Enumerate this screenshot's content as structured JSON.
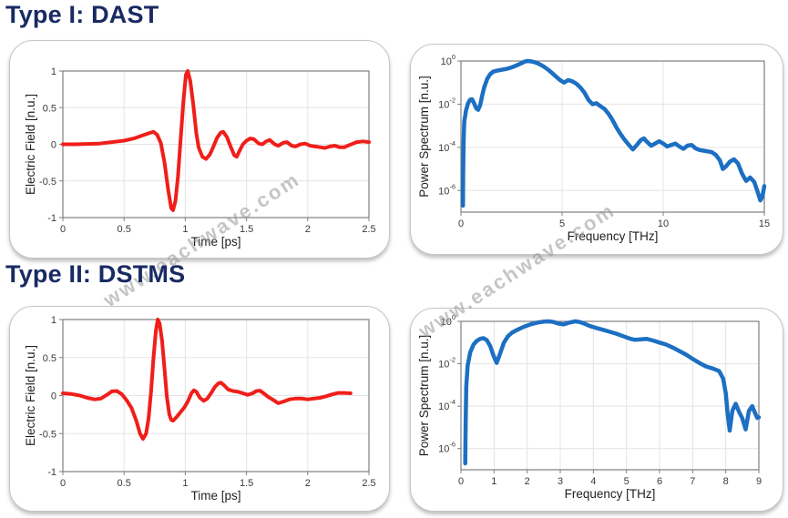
{
  "page": {
    "background": "#ffffff"
  },
  "heading_color": "#192a63",
  "headings": [
    {
      "text": "Type I: DAST"
    },
    {
      "text": "Type II: DSTMS"
    }
  ],
  "watermark": {
    "text": "www.eachwave.com",
    "color": "rgba(150,150,150,0.55)"
  },
  "colors": {
    "time_trace": "#f01e19",
    "spectrum_trace": "#1c6fc2",
    "grid": "#e4e4e4",
    "axis": "#7f7f7f"
  },
  "chart_data": [
    {
      "name": "dast-time",
      "type": "line",
      "title": "",
      "xlabel": "Time [ps]",
      "ylabel": "Electric Field [n.u.]",
      "xlim": [
        0,
        2.5
      ],
      "ylim": [
        -1,
        1
      ],
      "yscale": "linear",
      "xticks": [
        0,
        0.5,
        1,
        1.5,
        2,
        2.5
      ],
      "xtick_labels": [
        "0",
        "0.5",
        "1",
        "1.5",
        "2",
        "2.5"
      ],
      "yticks": [
        -1,
        -0.5,
        0,
        0.5,
        1
      ],
      "ytick_labels": [
        "-1",
        "-0.5",
        "0",
        "0.5",
        "1"
      ],
      "xgrid": [
        0.5,
        1,
        1.5,
        2
      ],
      "ygrid": [
        -0.5,
        0,
        0.5
      ],
      "grid": true,
      "legend": false,
      "line_color": "#f01e19",
      "line_width": 4,
      "points": [
        [
          0,
          0
        ],
        [
          0.1,
          0
        ],
        [
          0.2,
          0.005
        ],
        [
          0.3,
          0.01
        ],
        [
          0.4,
          0.03
        ],
        [
          0.5,
          0.05
        ],
        [
          0.58,
          0.08
        ],
        [
          0.65,
          0.12
        ],
        [
          0.71,
          0.155
        ],
        [
          0.74,
          0.17
        ],
        [
          0.77,
          0.13
        ],
        [
          0.8,
          0.02
        ],
        [
          0.83,
          -0.25
        ],
        [
          0.86,
          -0.62
        ],
        [
          0.885,
          -0.87
        ],
        [
          0.9,
          -0.9
        ],
        [
          0.92,
          -0.77
        ],
        [
          0.94,
          -0.45
        ],
        [
          0.96,
          0.02
        ],
        [
          0.985,
          0.6
        ],
        [
          1.005,
          0.95
        ],
        [
          1.02,
          1.0
        ],
        [
          1.04,
          0.87
        ],
        [
          1.065,
          0.55
        ],
        [
          1.09,
          0.15
        ],
        [
          1.11,
          -0.05
        ],
        [
          1.14,
          -0.17
        ],
        [
          1.17,
          -0.2
        ],
        [
          1.2,
          -0.14
        ],
        [
          1.23,
          -0.03
        ],
        [
          1.26,
          0.09
        ],
        [
          1.29,
          0.16
        ],
        [
          1.31,
          0.17
        ],
        [
          1.34,
          0.1
        ],
        [
          1.37,
          -0.03
        ],
        [
          1.4,
          -0.15
        ],
        [
          1.42,
          -0.17
        ],
        [
          1.44,
          -0.1
        ],
        [
          1.47,
          0.0
        ],
        [
          1.5,
          0.05
        ],
        [
          1.53,
          0.08
        ],
        [
          1.56,
          0.07
        ],
        [
          1.6,
          0.01
        ],
        [
          1.63,
          0.0
        ],
        [
          1.66,
          0.04
        ],
        [
          1.69,
          0.06
        ],
        [
          1.73,
          0.0
        ],
        [
          1.76,
          -0.02
        ],
        [
          1.8,
          0.02
        ],
        [
          1.83,
          0.03
        ],
        [
          1.87,
          -0.02
        ],
        [
          1.9,
          -0.03
        ],
        [
          1.94,
          0.0
        ],
        [
          1.98,
          0.01
        ],
        [
          2.02,
          -0.02
        ],
        [
          2.06,
          -0.03
        ],
        [
          2.1,
          -0.04
        ],
        [
          2.14,
          -0.05
        ],
        [
          2.18,
          -0.03
        ],
        [
          2.22,
          -0.02
        ],
        [
          2.26,
          -0.04
        ],
        [
          2.3,
          -0.04
        ],
        [
          2.34,
          -0.01
        ],
        [
          2.4,
          0.03
        ],
        [
          2.45,
          0.04
        ],
        [
          2.5,
          0.03
        ]
      ]
    },
    {
      "name": "dast-spectrum",
      "type": "line",
      "title": "",
      "xlabel": "Frequency [THz]",
      "ylabel": "Power Spectrum [n.u.]",
      "xlim": [
        0,
        15
      ],
      "yscale": "log",
      "ylog_exponents": [
        0,
        -7
      ],
      "ylim": [
        1e-07,
        1
      ],
      "xticks": [
        0,
        5,
        10,
        15
      ],
      "xtick_labels": [
        "0",
        "5",
        "10",
        "15"
      ],
      "ytick_exponents": [
        0,
        -2,
        -4,
        -6
      ],
      "xgrid": [
        5,
        10
      ],
      "grid_decades": [
        -2,
        -4,
        -6
      ],
      "grid": true,
      "legend": false,
      "line_color": "#1c6fc2",
      "line_width": 4.5,
      "points": [
        [
          0.1,
          2e-07
        ],
        [
          0.11,
          5e-06
        ],
        [
          0.13,
          0.0002
        ],
        [
          0.16,
          0.0015
        ],
        [
          0.25,
          0.005
        ],
        [
          0.35,
          0.011
        ],
        [
          0.45,
          0.016
        ],
        [
          0.55,
          0.017
        ],
        [
          0.65,
          0.011
        ],
        [
          0.75,
          0.0065
        ],
        [
          0.85,
          0.0055
        ],
        [
          0.95,
          0.009
        ],
        [
          1.05,
          0.025
        ],
        [
          1.15,
          0.06
        ],
        [
          1.3,
          0.15
        ],
        [
          1.45,
          0.25
        ],
        [
          1.6,
          0.32
        ],
        [
          1.8,
          0.36
        ],
        [
          2.0,
          0.39
        ],
        [
          2.2,
          0.42
        ],
        [
          2.4,
          0.47
        ],
        [
          2.6,
          0.55
        ],
        [
          2.8,
          0.65
        ],
        [
          3.0,
          0.8
        ],
        [
          3.15,
          0.93
        ],
        [
          3.3,
          1.0
        ],
        [
          3.5,
          0.95
        ],
        [
          3.7,
          0.85
        ],
        [
          3.9,
          0.7
        ],
        [
          4.1,
          0.55
        ],
        [
          4.3,
          0.4
        ],
        [
          4.5,
          0.28
        ],
        [
          4.7,
          0.19
        ],
        [
          4.9,
          0.13
        ],
        [
          5.1,
          0.1
        ],
        [
          5.3,
          0.13
        ],
        [
          5.5,
          0.115
        ],
        [
          5.7,
          0.09
        ],
        [
          5.9,
          0.06
        ],
        [
          6.1,
          0.035
        ],
        [
          6.3,
          0.016
        ],
        [
          6.5,
          0.01
        ],
        [
          6.7,
          0.011
        ],
        [
          6.9,
          0.008
        ],
        [
          7.1,
          0.006
        ],
        [
          7.3,
          0.0035
        ],
        [
          7.5,
          0.0018
        ],
        [
          7.7,
          0.0008
        ],
        [
          7.9,
          0.0004
        ],
        [
          8.1,
          0.00022
        ],
        [
          8.3,
          0.00013
        ],
        [
          8.5,
          8e-05
        ],
        [
          8.7,
          0.00013
        ],
        [
          8.9,
          0.00022
        ],
        [
          9.05,
          0.00026
        ],
        [
          9.2,
          0.00018
        ],
        [
          9.4,
          0.00012
        ],
        [
          9.6,
          0.00015
        ],
        [
          9.8,
          0.00019
        ],
        [
          10.0,
          0.00015
        ],
        [
          10.2,
          0.00011
        ],
        [
          10.4,
          0.00013
        ],
        [
          10.6,
          0.00015
        ],
        [
          10.8,
          0.00011
        ],
        [
          11.0,
          8.5e-05
        ],
        [
          11.2,
          0.00012
        ],
        [
          11.4,
          0.00013
        ],
        [
          11.6,
          9e-05
        ],
        [
          11.8,
          7.5e-05
        ],
        [
          12.0,
          7e-05
        ],
        [
          12.2,
          6.5e-05
        ],
        [
          12.4,
          6e-05
        ],
        [
          12.6,
          4.5e-05
        ],
        [
          12.8,
          2.5e-05
        ],
        [
          12.95,
          1e-05
        ],
        [
          13.1,
          1.3e-05
        ],
        [
          13.3,
          2.2e-05
        ],
        [
          13.5,
          2.8e-05
        ],
        [
          13.7,
          1.8e-05
        ],
        [
          13.9,
          6e-06
        ],
        [
          14.1,
          2.8e-06
        ],
        [
          14.3,
          4e-06
        ],
        [
          14.5,
          2.5e-06
        ],
        [
          14.65,
          1e-06
        ],
        [
          14.8,
          3.5e-07
        ],
        [
          14.9,
          5e-07
        ],
        [
          15.0,
          1.6e-06
        ]
      ]
    },
    {
      "name": "dstms-time",
      "type": "line",
      "title": "",
      "xlabel": "Time [ps]",
      "ylabel": "Electric Field [n.u.]",
      "xlim": [
        0,
        2.5
      ],
      "ylim": [
        -1,
        1
      ],
      "yscale": "linear",
      "xticks": [
        0,
        0.5,
        1,
        1.5,
        2,
        2.5
      ],
      "xtick_labels": [
        "0",
        "0.5",
        "1",
        "1.5",
        "2",
        "2.5"
      ],
      "yticks": [
        -1,
        -0.5,
        0,
        0.5,
        1
      ],
      "ytick_labels": [
        "-1",
        "-0.5",
        "0",
        "0.5",
        "1"
      ],
      "xgrid": [
        0.5,
        1,
        1.5,
        2
      ],
      "ygrid": [
        -0.5,
        0,
        0.5
      ],
      "grid": true,
      "legend": false,
      "line_color": "#f01e19",
      "line_width": 4,
      "points": [
        [
          0,
          0.03
        ],
        [
          0.07,
          0.02
        ],
        [
          0.14,
          0.0
        ],
        [
          0.2,
          -0.03
        ],
        [
          0.26,
          -0.05
        ],
        [
          0.31,
          -0.04
        ],
        [
          0.36,
          0.01
        ],
        [
          0.4,
          0.055
        ],
        [
          0.44,
          0.06
        ],
        [
          0.48,
          0.02
        ],
        [
          0.52,
          -0.06
        ],
        [
          0.56,
          -0.16
        ],
        [
          0.6,
          -0.33
        ],
        [
          0.63,
          -0.5
        ],
        [
          0.655,
          -0.57
        ],
        [
          0.68,
          -0.5
        ],
        [
          0.7,
          -0.3
        ],
        [
          0.72,
          0.05
        ],
        [
          0.74,
          0.5
        ],
        [
          0.76,
          0.85
        ],
        [
          0.775,
          1.0
        ],
        [
          0.79,
          0.95
        ],
        [
          0.81,
          0.72
        ],
        [
          0.83,
          0.35
        ],
        [
          0.85,
          -0.02
        ],
        [
          0.87,
          -0.25
        ],
        [
          0.885,
          -0.32
        ],
        [
          0.9,
          -0.33
        ],
        [
          0.93,
          -0.28
        ],
        [
          0.96,
          -0.22
        ],
        [
          0.99,
          -0.16
        ],
        [
          1.02,
          -0.08
        ],
        [
          1.05,
          0.03
        ],
        [
          1.07,
          0.07
        ],
        [
          1.09,
          0.05
        ],
        [
          1.12,
          -0.03
        ],
        [
          1.15,
          -0.07
        ],
        [
          1.18,
          -0.04
        ],
        [
          1.21,
          0.03
        ],
        [
          1.24,
          0.11
        ],
        [
          1.27,
          0.16
        ],
        [
          1.29,
          0.17
        ],
        [
          1.32,
          0.13
        ],
        [
          1.35,
          0.08
        ],
        [
          1.39,
          0.06
        ],
        [
          1.43,
          0.05
        ],
        [
          1.47,
          0.03
        ],
        [
          1.51,
          0.01
        ],
        [
          1.55,
          0.03
        ],
        [
          1.58,
          0.06
        ],
        [
          1.61,
          0.065
        ],
        [
          1.64,
          0.03
        ],
        [
          1.68,
          -0.02
        ],
        [
          1.72,
          -0.06
        ],
        [
          1.76,
          -0.1
        ],
        [
          1.8,
          -0.08
        ],
        [
          1.85,
          -0.05
        ],
        [
          1.9,
          -0.04
        ],
        [
          1.95,
          -0.04
        ],
        [
          2.0,
          -0.05
        ],
        [
          2.05,
          -0.04
        ],
        [
          2.1,
          -0.03
        ],
        [
          2.15,
          -0.01
        ],
        [
          2.2,
          0.015
        ],
        [
          2.25,
          0.035
        ],
        [
          2.3,
          0.035
        ],
        [
          2.35,
          0.03
        ]
      ]
    },
    {
      "name": "dstms-spectrum",
      "type": "line",
      "title": "",
      "xlabel": "Frequency [THz]",
      "ylabel": "Power Spectrum [n.u.]",
      "xlim": [
        0,
        9
      ],
      "yscale": "log",
      "ylog_exponents": [
        0,
        -7
      ],
      "ylim": [
        1e-07,
        1
      ],
      "xticks": [
        0,
        1,
        2,
        3,
        4,
        5,
        6,
        7,
        8,
        9
      ],
      "xtick_labels": [
        "0",
        "1",
        "2",
        "3",
        "4",
        "5",
        "6",
        "7",
        "8",
        "9"
      ],
      "ytick_exponents": [
        0,
        -2,
        -4,
        -6
      ],
      "xgrid": [
        1,
        2,
        3,
        4,
        5,
        6,
        7,
        8
      ],
      "grid_decades": [
        -2,
        -4,
        -6
      ],
      "grid": true,
      "legend": false,
      "line_color": "#1c6fc2",
      "line_width": 4.5,
      "points": [
        [
          0.13,
          2e-07
        ],
        [
          0.14,
          1e-05
        ],
        [
          0.16,
          0.0008
        ],
        [
          0.2,
          0.008
        ],
        [
          0.28,
          0.035
        ],
        [
          0.38,
          0.08
        ],
        [
          0.48,
          0.12
        ],
        [
          0.58,
          0.15
        ],
        [
          0.68,
          0.16
        ],
        [
          0.78,
          0.13
        ],
        [
          0.88,
          0.07
        ],
        [
          0.98,
          0.025
        ],
        [
          1.08,
          0.011
        ],
        [
          1.18,
          0.03
        ],
        [
          1.3,
          0.1
        ],
        [
          1.42,
          0.2
        ],
        [
          1.55,
          0.3
        ],
        [
          1.7,
          0.4
        ],
        [
          1.9,
          0.55
        ],
        [
          2.1,
          0.72
        ],
        [
          2.3,
          0.87
        ],
        [
          2.5,
          0.97
        ],
        [
          2.65,
          1.0
        ],
        [
          2.8,
          0.93
        ],
        [
          2.95,
          0.78
        ],
        [
          3.1,
          0.72
        ],
        [
          3.25,
          0.85
        ],
        [
          3.45,
          1.0
        ],
        [
          3.6,
          0.92
        ],
        [
          3.75,
          0.75
        ],
        [
          3.9,
          0.6
        ],
        [
          4.1,
          0.48
        ],
        [
          4.3,
          0.4
        ],
        [
          4.5,
          0.32
        ],
        [
          4.7,
          0.26
        ],
        [
          4.9,
          0.2
        ],
        [
          5.1,
          0.155
        ],
        [
          5.25,
          0.135
        ],
        [
          5.4,
          0.14
        ],
        [
          5.6,
          0.15
        ],
        [
          5.8,
          0.125
        ],
        [
          6.0,
          0.1
        ],
        [
          6.2,
          0.08
        ],
        [
          6.4,
          0.058
        ],
        [
          6.6,
          0.04
        ],
        [
          6.8,
          0.027
        ],
        [
          7.0,
          0.017
        ],
        [
          7.2,
          0.011
        ],
        [
          7.4,
          0.0075
        ],
        [
          7.6,
          0.006
        ],
        [
          7.8,
          0.0045
        ],
        [
          7.92,
          0.002
        ],
        [
          8.0,
          0.0004
        ],
        [
          8.06,
          4e-05
        ],
        [
          8.12,
          7e-06
        ],
        [
          8.2,
          6e-05
        ],
        [
          8.3,
          0.00013
        ],
        [
          8.4,
          5.5e-05
        ],
        [
          8.5,
          2.7e-05
        ],
        [
          8.6,
          8e-06
        ],
        [
          8.7,
          6e-05
        ],
        [
          8.8,
          0.0001
        ],
        [
          8.88,
          5e-05
        ],
        [
          8.95,
          2.8e-05
        ],
        [
          9.0,
          3e-05
        ]
      ]
    }
  ]
}
